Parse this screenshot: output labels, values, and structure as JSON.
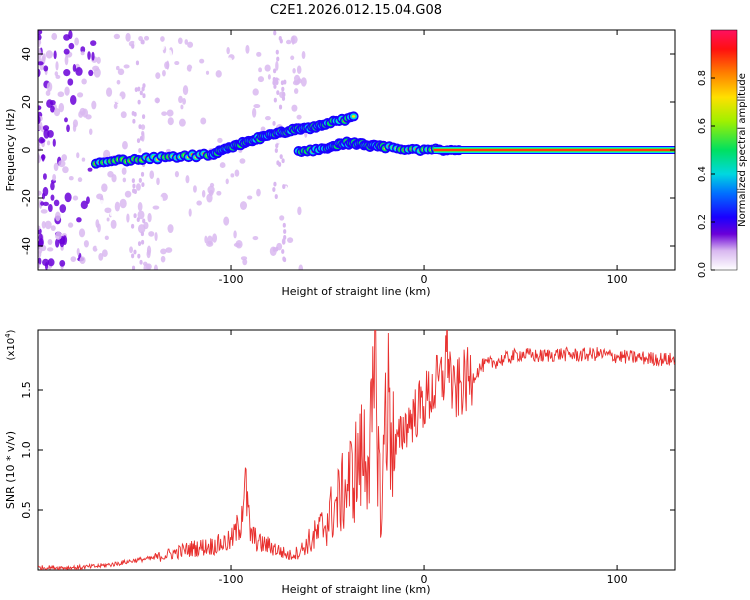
{
  "title": "C2E1.2026.012.15.04.G08",
  "colors": {
    "trace": "#e8302e",
    "axis": "#000000",
    "background": "#ffffff"
  },
  "chart_data": [
    {
      "type": "heatmap",
      "title": "C2E1.2026.012.15.04.G08",
      "xlabel": "Height of straight line (km)",
      "ylabel": "Frequency (Hz)",
      "xlim": [
        -200,
        130
      ],
      "ylim": [
        -50,
        50
      ],
      "xticks": [
        -100,
        0,
        100
      ],
      "xtick_labels": [
        "-100",
        "0",
        "100"
      ],
      "yticks": [
        -40,
        -20,
        0,
        20,
        40
      ],
      "ytick_labels": [
        "-40",
        "-20",
        "0",
        "20",
        "40"
      ],
      "colorbar": {
        "label": "Normalized spectral amplitude",
        "range": [
          0,
          1
        ],
        "ticks": [
          0,
          0.2,
          0.4,
          0.6,
          0.8
        ],
        "tick_labels": [
          "0.0",
          "0.2",
          "0.4",
          "0.6",
          "0.8"
        ]
      },
      "ridge": {
        "description": "dominant frequency track",
        "points": [
          {
            "x": -170,
            "y": -5
          },
          {
            "x": -150,
            "y": -4
          },
          {
            "x": -130,
            "y": -3
          },
          {
            "x": -110,
            "y": -2
          },
          {
            "x": -100,
            "y": 1
          },
          {
            "x": -90,
            "y": 4
          },
          {
            "x": -80,
            "y": 6
          },
          {
            "x": -70,
            "y": 8
          },
          {
            "x": -60,
            "y": 9
          },
          {
            "x": -50,
            "y": 11
          },
          {
            "x": -35,
            "y": 14
          }
        ],
        "lower_branch": [
          {
            "x": -65,
            "y": -1
          },
          {
            "x": -50,
            "y": 1
          },
          {
            "x": -40,
            "y": 3
          },
          {
            "x": -30,
            "y": 2
          },
          {
            "x": -20,
            "y": 1
          },
          {
            "x": 0,
            "y": 0
          },
          {
            "x": 20,
            "y": 0
          },
          {
            "x": 130,
            "y": 0
          }
        ]
      }
    },
    {
      "type": "line",
      "xlabel": "Height of straight line (km)",
      "ylabel": "SNR (10 * v/v)",
      "y_scale_label": "(x10",
      "y_scale_exponent": "4",
      "y_scale_close": ")",
      "xlim": [
        -200,
        130
      ],
      "ylim": [
        0,
        2.0
      ],
      "xticks": [
        -100,
        0,
        100
      ],
      "xtick_labels": [
        "-100",
        "0",
        "100"
      ],
      "yticks": [
        0.5,
        1.0,
        1.5
      ],
      "ytick_labels": [
        "0.5",
        "1.0",
        "1.5"
      ],
      "series": [
        {
          "name": "SNR",
          "x": [
            -200,
            -190,
            -180,
            -170,
            -160,
            -150,
            -140,
            -130,
            -120,
            -110,
            -100,
            -95,
            -93,
            -90,
            -85,
            -80,
            -75,
            -70,
            -65,
            -60,
            -55,
            -50,
            -45,
            -40,
            -35,
            -30,
            -27,
            -25,
            -22,
            -20,
            -15,
            -10,
            -5,
            0,
            5,
            10,
            12,
            15,
            20,
            25,
            30,
            40,
            50,
            60,
            70,
            80,
            90,
            100,
            110,
            120,
            130
          ],
          "values": [
            0.02,
            0.02,
            0.02,
            0.03,
            0.05,
            0.08,
            0.1,
            0.14,
            0.18,
            0.2,
            0.24,
            0.4,
            0.75,
            0.3,
            0.22,
            0.2,
            0.16,
            0.12,
            0.15,
            0.22,
            0.3,
            0.42,
            0.55,
            0.7,
            0.85,
            1.0,
            1.1,
            1.6,
            0.3,
            1.5,
            1.0,
            1.2,
            1.3,
            1.4,
            1.5,
            1.6,
            1.9,
            1.45,
            1.55,
            1.6,
            1.7,
            1.75,
            1.8,
            1.78,
            1.8,
            1.79,
            1.8,
            1.78,
            1.77,
            1.76,
            1.75
          ]
        }
      ]
    }
  ]
}
